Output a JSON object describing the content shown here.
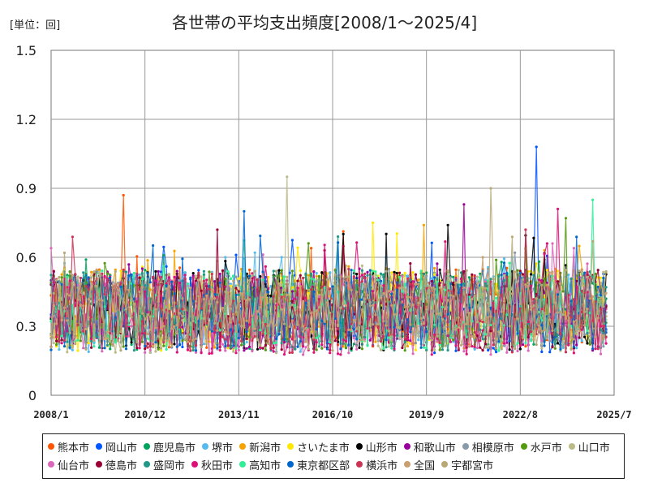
{
  "unit_label": "[単位：回]",
  "chart_data": {
    "type": "line",
    "title": "各世帯の平均支出頻度[2008/1～2025/4]",
    "xlabel": "",
    "ylabel": "",
    "ylim": [
      0,
      1.5
    ],
    "y_ticks": [
      "0",
      "0.3",
      "0.6",
      "0.9",
      "1.2",
      "1.5"
    ],
    "y_tick_values": [
      0,
      0.3,
      0.6,
      0.9,
      1.2,
      1.5
    ],
    "x_ticks": [
      "2008/1",
      "2010/12",
      "2013/11",
      "2016/10",
      "2019/9",
      "2022/8",
      "2025/7"
    ],
    "x_range": [
      "2008/1",
      "2025/7"
    ],
    "x_start": "2008/1",
    "x_end": "2025/4",
    "grid": true,
    "legend": "bottom",
    "series": [
      {
        "name": "熊本市",
        "color": "#ff5500",
        "mean": 0.38,
        "spread": 0.11,
        "peak": {
          "x": "2010/4",
          "y": 0.87
        }
      },
      {
        "name": "岡山市",
        "color": "#0055ff",
        "mean": 0.36,
        "spread": 0.11,
        "peak": {
          "x": "2023/2",
          "y": 1.08
        }
      },
      {
        "name": "鹿児島市",
        "color": "#00a35c",
        "mean": 0.37,
        "spread": 0.11,
        "peak": {
          "x": "2011/7",
          "y": 0.61
        }
      },
      {
        "name": "堺市",
        "color": "#55bbee",
        "mean": 0.36,
        "spread": 0.11,
        "peak": {
          "x": "2014/5",
          "y": 0.62
        }
      },
      {
        "name": "新潟市",
        "color": "#f5a300",
        "mean": 0.38,
        "spread": 0.11,
        "peak": {
          "x": "2019/8",
          "y": 0.74
        }
      },
      {
        "name": "さいたま市",
        "color": "#ffe800",
        "mean": 0.37,
        "spread": 0.11,
        "peak": {
          "x": "2018/1",
          "y": 0.75
        }
      },
      {
        "name": "山形市",
        "color": "#000000",
        "mean": 0.37,
        "spread": 0.11,
        "peak": {
          "x": "2020/5",
          "y": 0.74
        }
      },
      {
        "name": "和歌山市",
        "color": "#990099",
        "mean": 0.37,
        "spread": 0.11,
        "peak": {
          "x": "2020/11",
          "y": 0.83
        }
      },
      {
        "name": "相模原市",
        "color": "#8899aa",
        "mean": 0.36,
        "spread": 0.1,
        "peak": {
          "x": "2022/6",
          "y": 0.62
        }
      },
      {
        "name": "水戸市",
        "color": "#559911",
        "mean": 0.37,
        "spread": 0.11,
        "peak": {
          "x": "2024/1",
          "y": 0.77
        }
      },
      {
        "name": "山口市",
        "color": "#bbbb88",
        "mean": 0.36,
        "spread": 0.11,
        "peak": {
          "x": "2015/5",
          "y": 0.95
        }
      },
      {
        "name": "仙台市",
        "color": "#dd66bb",
        "mean": 0.35,
        "spread": 0.11,
        "peak": {
          "x": "2023/8",
          "y": 0.66
        }
      },
      {
        "name": "徳島市",
        "color": "#990033",
        "mean": 0.37,
        "spread": 0.11,
        "peak": {
          "x": "2013/3",
          "y": 0.72
        }
      },
      {
        "name": "盛岡市",
        "color": "#229988",
        "mean": 0.37,
        "spread": 0.11,
        "peak": {
          "x": "2016/12",
          "y": 0.69
        }
      },
      {
        "name": "秋田市",
        "color": "#dd1177",
        "mean": 0.35,
        "spread": 0.11,
        "peak": {
          "x": "2023/10",
          "y": 0.81
        }
      },
      {
        "name": "高知市",
        "color": "#33ee99",
        "mean": 0.37,
        "spread": 0.11,
        "peak": {
          "x": "2024/11",
          "y": 0.85
        }
      },
      {
        "name": "東京都区部",
        "color": "#0066cc",
        "mean": 0.37,
        "spread": 0.11,
        "peak": {
          "x": "2014/1",
          "y": 0.8
        }
      },
      {
        "name": "横浜市",
        "color": "#cc3355",
        "mean": 0.36,
        "spread": 0.11,
        "peak": {
          "x": "2022/10",
          "y": 0.72
        }
      },
      {
        "name": "全国",
        "color": "#c8a070",
        "mean": 0.36,
        "spread": 0.08,
        "peak": {
          "x": "2021/6",
          "y": 0.6
        }
      },
      {
        "name": "宇都宮市",
        "color": "#b8a878",
        "mean": 0.37,
        "spread": 0.11,
        "peak": {
          "x": "2021/9",
          "y": 0.9
        }
      }
    ]
  }
}
